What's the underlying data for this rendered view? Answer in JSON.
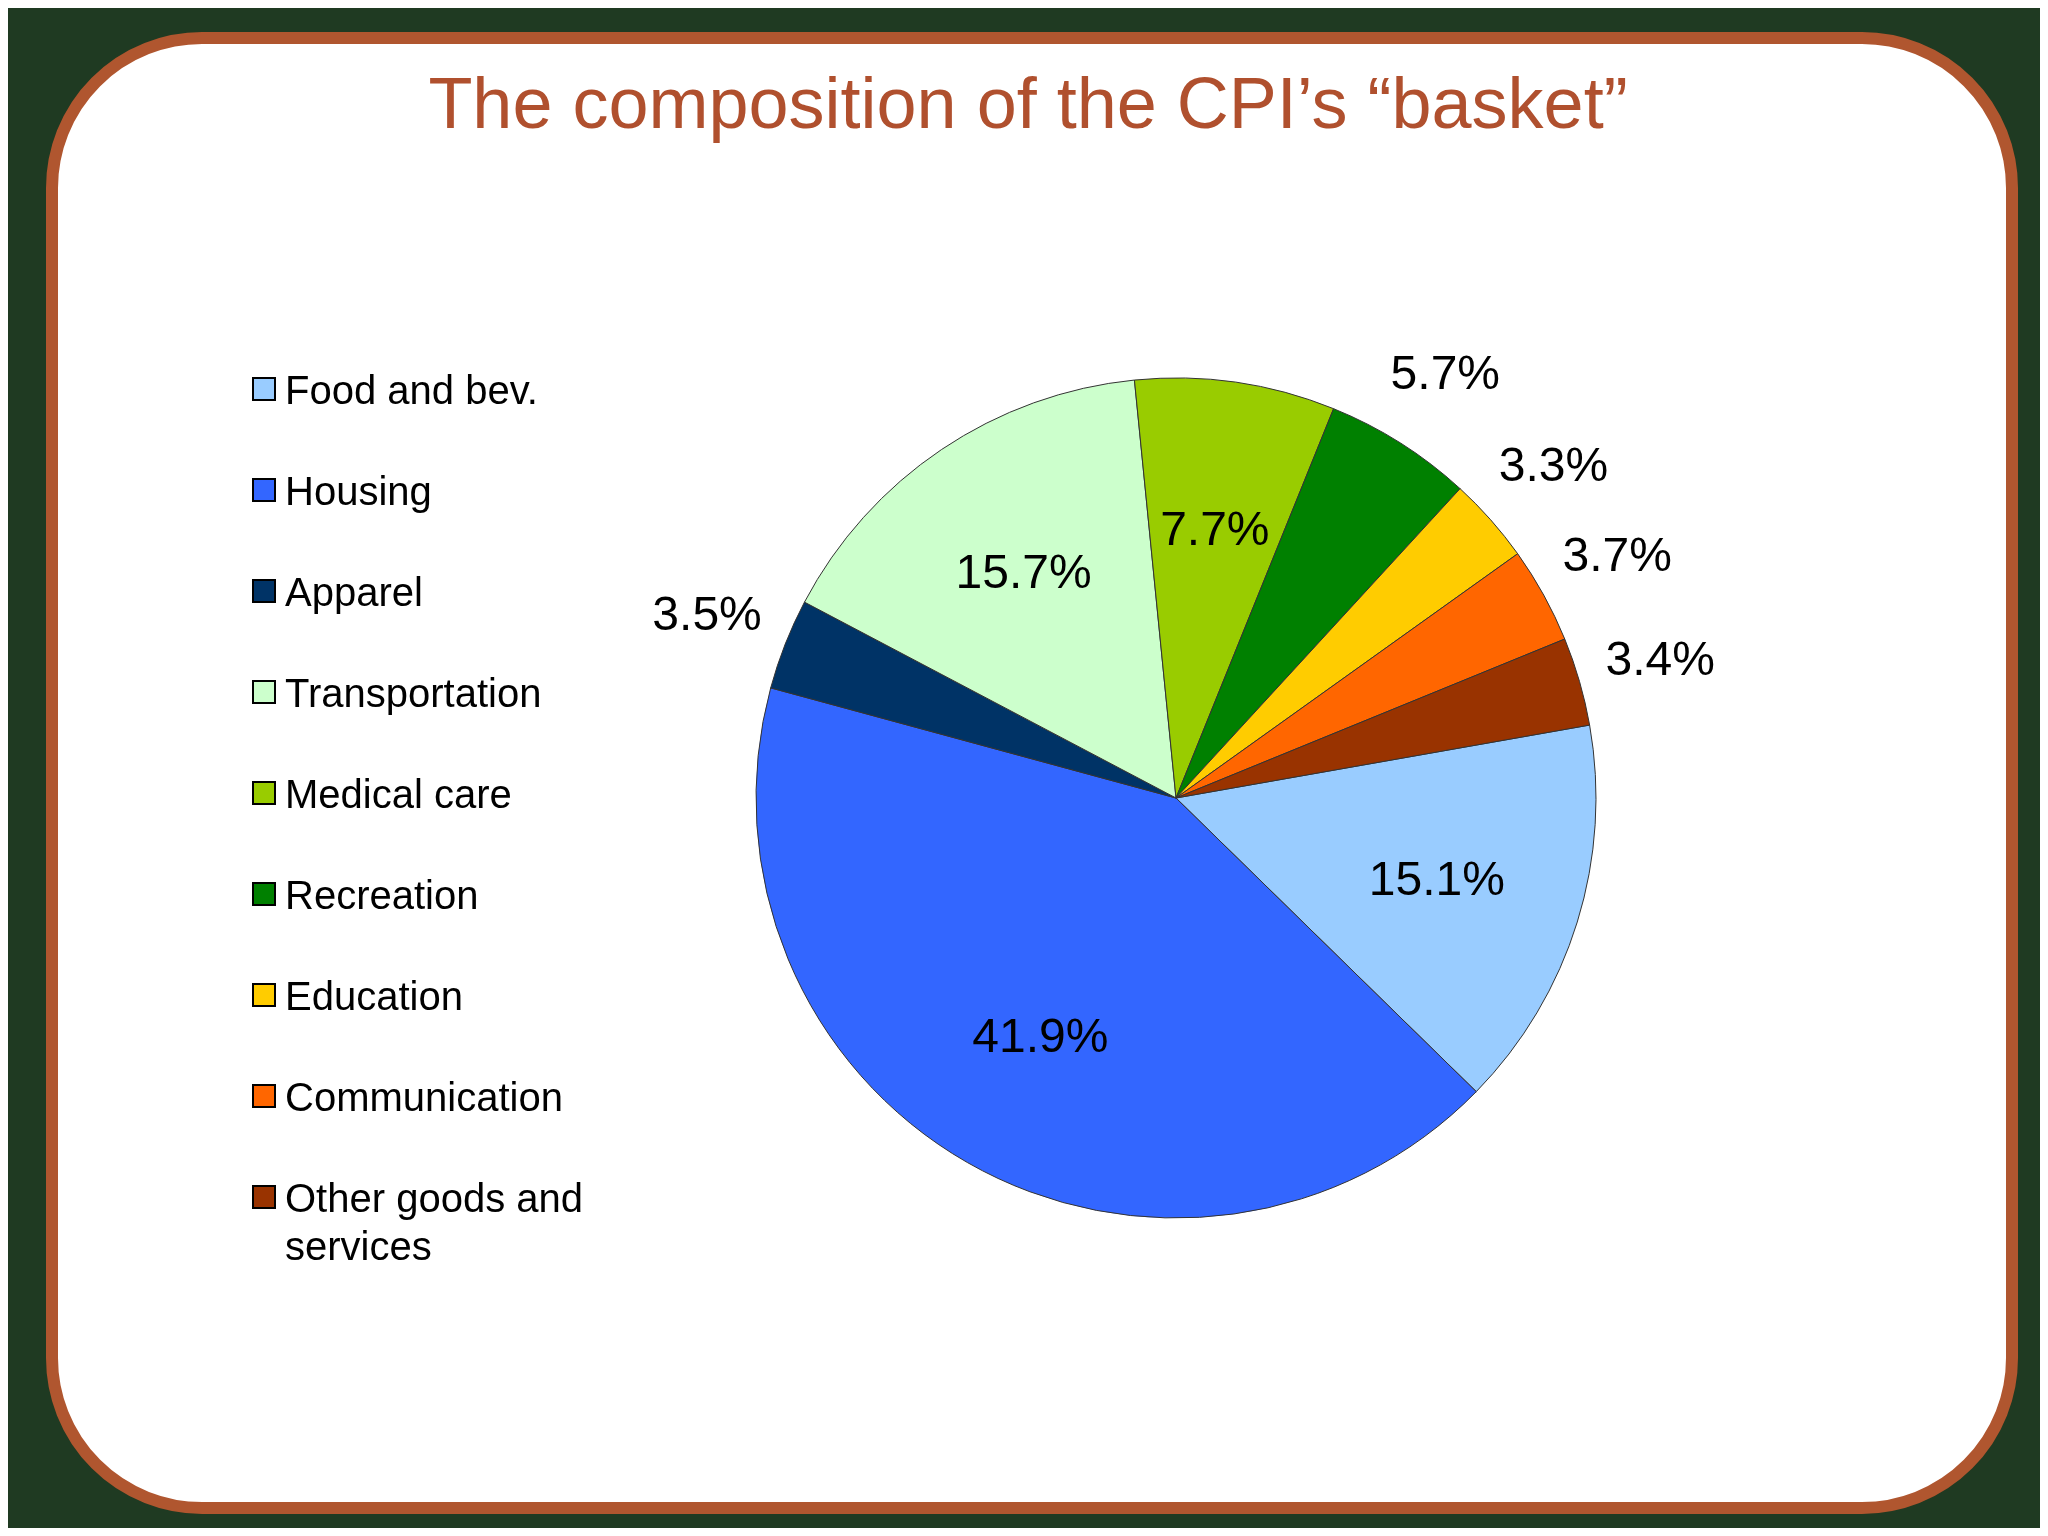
{
  "chart_data": {
    "type": "pie",
    "title": "The composition of the CPI’s “basket”",
    "categories": [
      "Food and bev.",
      "Housing",
      "Apparel",
      "Transportation",
      "Medical care",
      "Recreation",
      "Education",
      "Communication",
      "Other goods and services"
    ],
    "values": [
      15.1,
      41.9,
      3.5,
      15.7,
      7.7,
      5.7,
      3.3,
      3.7,
      3.4
    ],
    "colors": [
      "#99ccff",
      "#3366ff",
      "#003366",
      "#ccffcc",
      "#99cc00",
      "#008000",
      "#ffcc00",
      "#ff6600",
      "#993300"
    ],
    "value_labels": [
      "15.1%",
      "41.9%",
      "3.5%",
      "15.7%",
      "7.7%",
      "5.7%",
      "3.3%",
      "3.7%",
      "3.4%"
    ],
    "legend": "left"
  }
}
